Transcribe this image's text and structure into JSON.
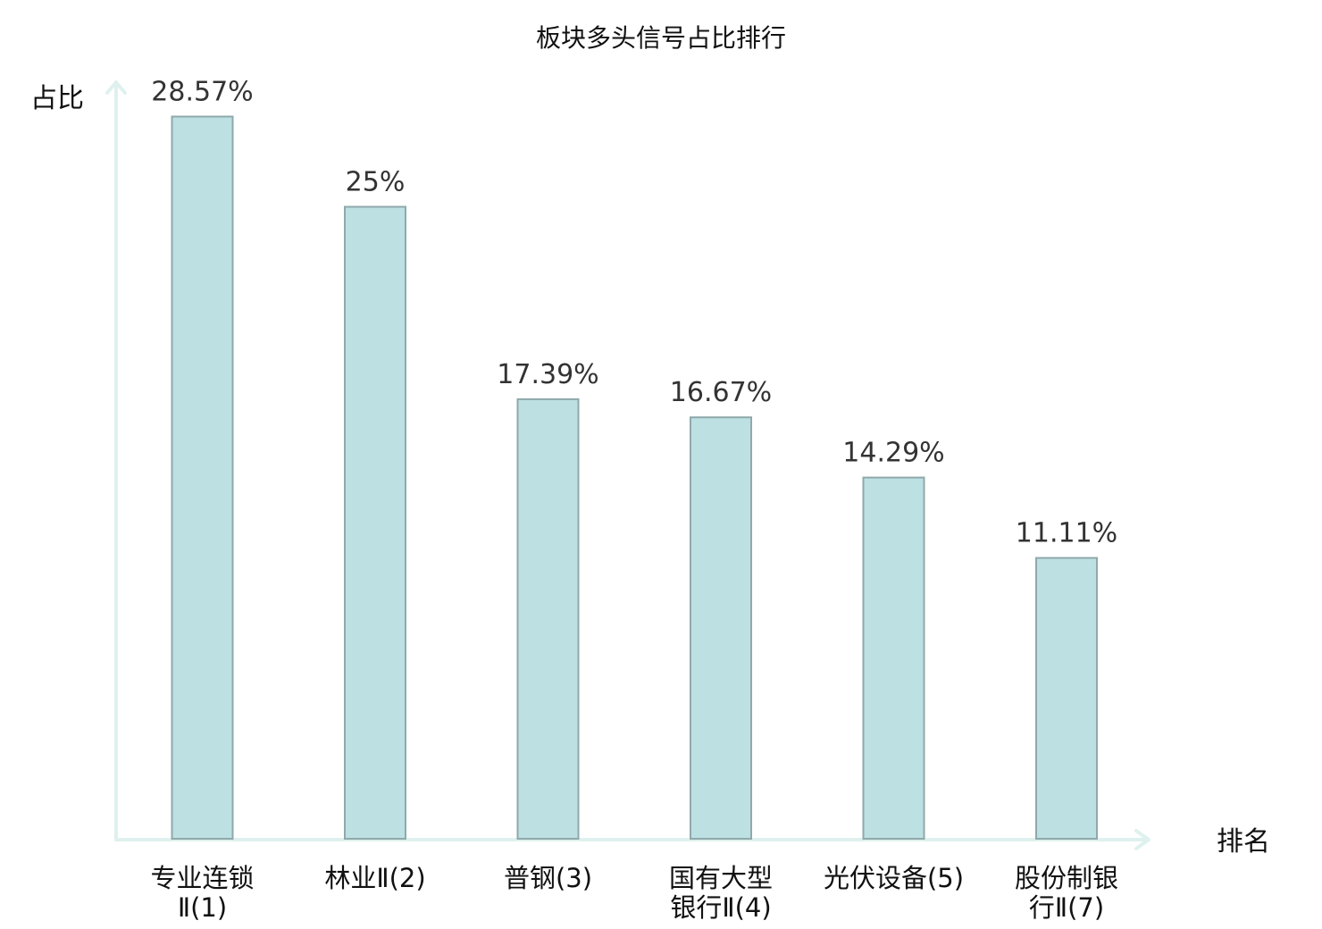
{
  "chart_data": {
    "type": "bar",
    "title": "板块多头信号占比排行",
    "ylabel": "占比",
    "xlabel": "排名",
    "ylim": [
      0,
      30
    ],
    "grid": false,
    "categories": [
      [
        "专业连锁",
        "Ⅱ(1)"
      ],
      [
        "林业Ⅱ(2)"
      ],
      [
        "普钢(3)"
      ],
      [
        "国有大型",
        "银行Ⅱ(4)"
      ],
      [
        "光伏设备(5)"
      ],
      [
        "股份制银",
        "行Ⅱ(7)"
      ]
    ],
    "values": [
      28.57,
      25,
      17.39,
      16.67,
      14.29,
      11.11
    ],
    "value_labels": [
      "28.57%",
      "25%",
      "17.39%",
      "16.67%",
      "14.29%",
      "11.11%"
    ],
    "highlight_index": 5,
    "colors": {
      "bar_fill": "#bde0e3",
      "bar_stroke": "#8fa9ab",
      "axis": "#dff1ee",
      "highlight_label": "#e00000",
      "value_text": "#333333"
    }
  }
}
